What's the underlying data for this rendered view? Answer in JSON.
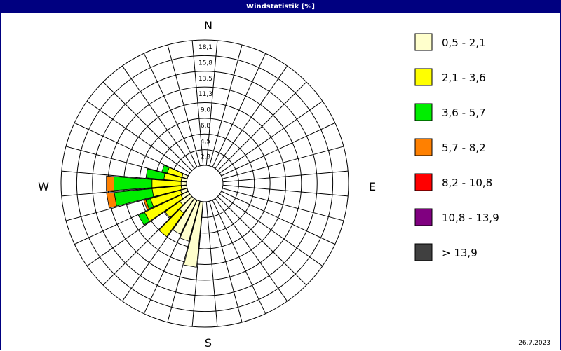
{
  "window": {
    "title": "Windstatistik [%]",
    "date": "26.7.2023"
  },
  "compass": {
    "north": "N",
    "east": "E",
    "south": "S",
    "west": "W"
  },
  "colors": {
    "background": "#ffffff",
    "titlebar": "#000080",
    "grid": "#000000",
    "classes": [
      "#ffffcc",
      "#ffff00",
      "#00ee00",
      "#ff8000",
      "#ff0000",
      "#800080",
      "#404040"
    ]
  },
  "chart_data": {
    "type": "windrose",
    "title": "Windstatistik [%]",
    "unit": "%",
    "direction_labels": [
      "N",
      "E",
      "S",
      "W"
    ],
    "sector_count": 36,
    "sector_width_deg": 10,
    "radial_ticks": [
      "2,3",
      "4,5",
      "6,8",
      "9,0",
      "11,3",
      "13,5",
      "15,8",
      "18,1"
    ],
    "radial_max": 18.1,
    "calm_circle": 1.0,
    "speed_classes": [
      "0,5 - 2,1",
      "2,1 - 3,6",
      "3,6 - 5,7",
      "5,7 - 8,2",
      "8,2 - 10,8",
      "10,8 - 13,9",
      "> 13,9"
    ],
    "sectors": [
      {
        "direction_deg": 190,
        "cumulative": [
          9.5,
          9.5,
          9.5,
          9.5,
          9.5,
          9.5,
          9.5
        ]
      },
      {
        "direction_deg": 200,
        "cumulative": [
          6.0,
          6.0,
          6.0,
          6.0,
          6.0,
          6.0,
          6.0
        ]
      },
      {
        "direction_deg": 210,
        "cumulative": [
          5.5,
          5.5,
          5.5,
          5.5,
          5.5,
          5.5,
          5.5
        ]
      },
      {
        "direction_deg": 220,
        "cumulative": [
          2.6,
          6.8,
          6.8,
          6.8,
          6.8,
          6.8,
          6.8
        ]
      },
      {
        "direction_deg": 230,
        "cumulative": [
          1.8,
          4.4,
          4.4,
          4.4,
          4.4,
          4.4,
          4.4
        ]
      },
      {
        "direction_deg": 240,
        "cumulative": [
          1.2,
          7.0,
          8.0,
          8.0,
          8.0,
          8.0,
          8.0
        ]
      },
      {
        "direction_deg": 250,
        "cumulative": [
          1.0,
          5.5,
          6.2,
          6.5,
          6.5,
          6.5,
          6.5
        ]
      },
      {
        "direction_deg": 260,
        "cumulative": [
          0.8,
          5.0,
          10.5,
          11.6,
          11.6,
          11.6,
          11.6
        ]
      },
      {
        "direction_deg": 270,
        "cumulative": [
          0.8,
          5.0,
          10.5,
          11.6,
          11.6,
          11.6,
          11.6
        ]
      },
      {
        "direction_deg": 280,
        "cumulative": [
          0.8,
          3.3,
          5.9,
          5.9,
          5.9,
          5.9,
          5.9
        ]
      },
      {
        "direction_deg": 290,
        "cumulative": [
          0.8,
          3.0,
          3.8,
          3.8,
          3.8,
          3.8,
          3.8
        ]
      }
    ]
  }
}
